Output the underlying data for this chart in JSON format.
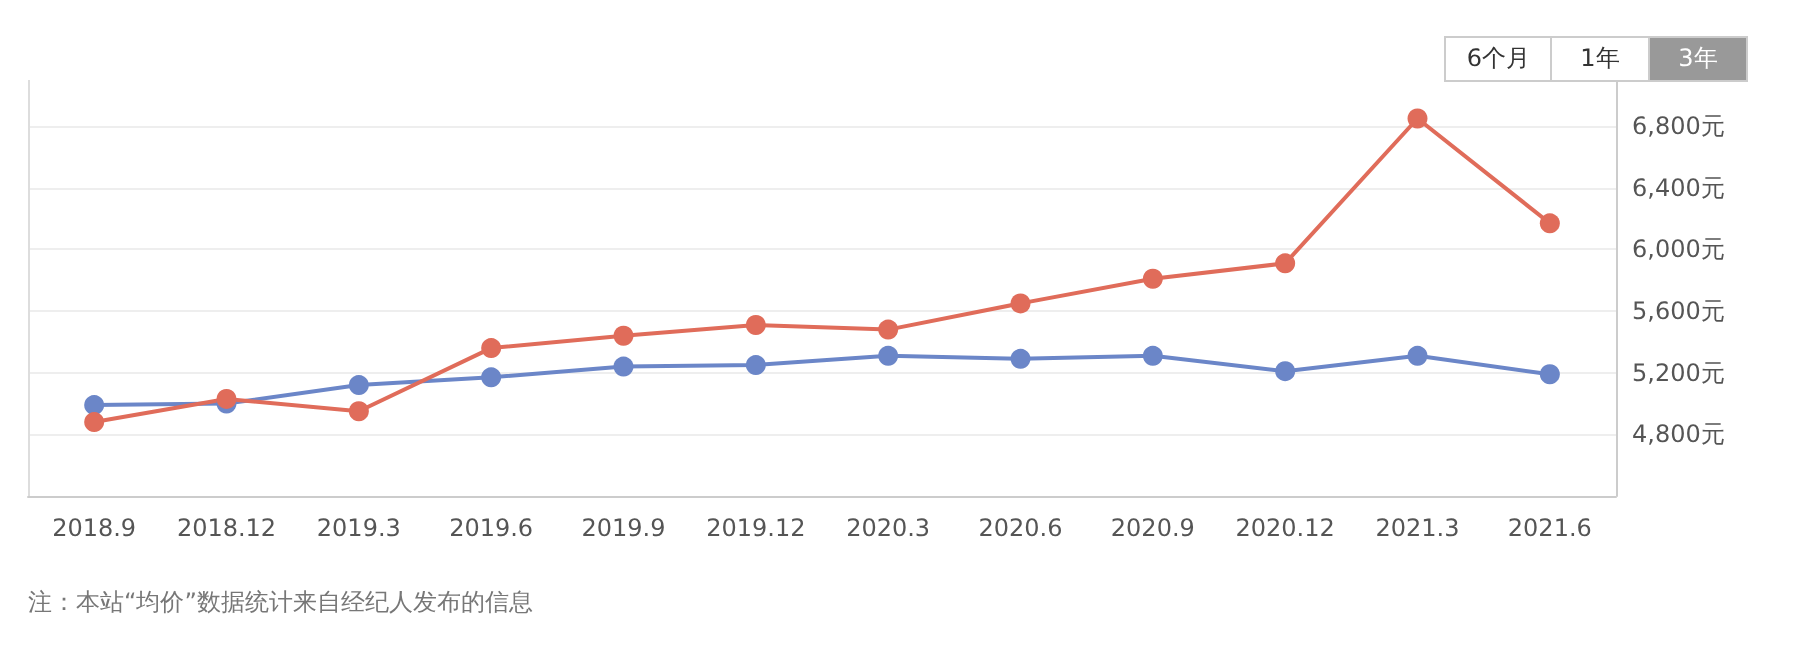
{
  "chart_data": {
    "type": "line",
    "categories": [
      "2018.9",
      "2018.12",
      "2019.3",
      "2019.6",
      "2019.9",
      "2019.12",
      "2020.3",
      "2020.6",
      "2020.9",
      "2020.12",
      "2021.3",
      "2021.6"
    ],
    "series": [
      {
        "color": "#6b86c8",
        "values": [
          4990,
          5000,
          5120,
          5170,
          5240,
          5250,
          5310,
          5290,
          5310,
          5210,
          5310,
          5190
        ]
      },
      {
        "color": "#e06c5a",
        "values": [
          4880,
          5030,
          4950,
          5360,
          5440,
          5510,
          5480,
          5650,
          5810,
          5910,
          6850,
          6170
        ]
      }
    ],
    "ylim": [
      4400,
      7100
    ],
    "yticks": [
      {
        "value": 4800,
        "label": "4,800元"
      },
      {
        "value": 5200,
        "label": "5,200元"
      },
      {
        "value": 5600,
        "label": "5,600元"
      },
      {
        "value": 6000,
        "label": "6,000元"
      },
      {
        "value": 6400,
        "label": "6,400元"
      },
      {
        "value": 6800,
        "label": "6,800元"
      }
    ],
    "grid": "y",
    "marker": "circle",
    "line_style": "solid",
    "annotations": [
      "6个月",
      "1年",
      "3年",
      "注：本站“均价”数据统计来自经纪人发布的信息"
    ]
  }
}
